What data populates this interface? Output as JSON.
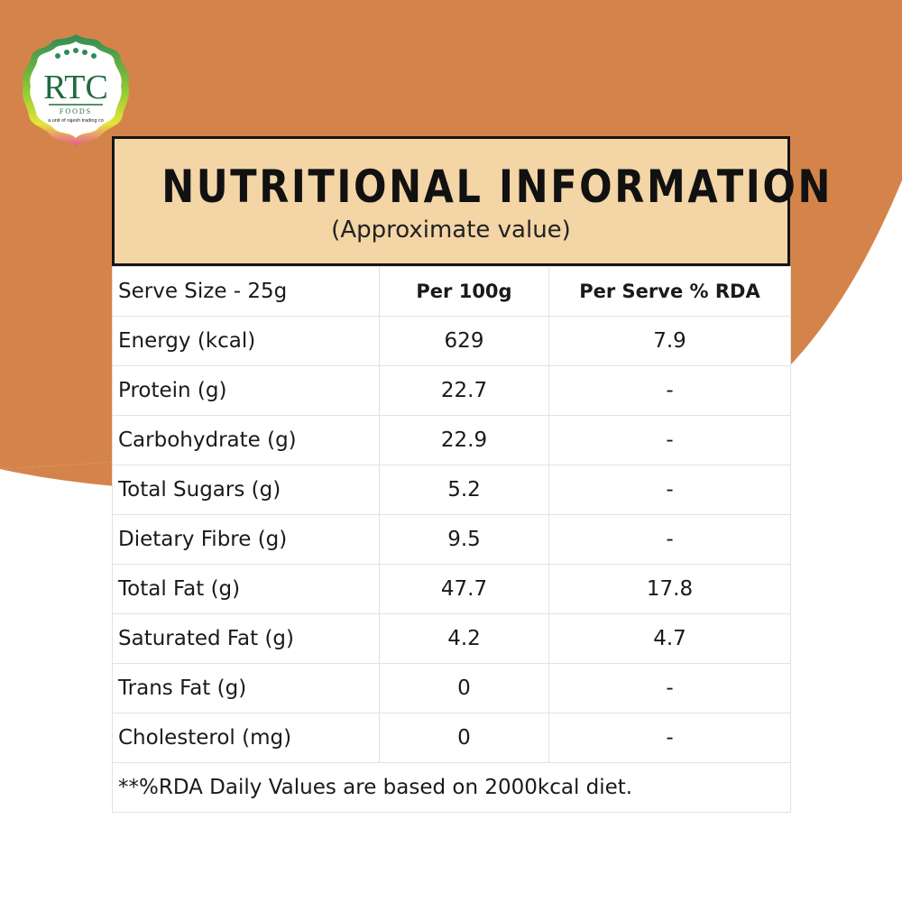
{
  "brand": {
    "name": "RTC",
    "sub": "FOODS",
    "tagline": "a unit of rajesh trading co"
  },
  "colors": {
    "background_shape": "#d4844a",
    "header_fill": "#f3d5a6",
    "header_border": "#141414",
    "logo_green": "#2e8b57",
    "logo_yellow": "#e6e636",
    "logo_pink": "#e8559a"
  },
  "header": {
    "title": "NUTRITIONAL INFORMATION",
    "subtitle": "(Approximate value)"
  },
  "table": {
    "columns": [
      "Serve Size - 25g",
      "Per 100g",
      "Per Serve % RDA"
    ],
    "rows": [
      [
        "Energy (kcal)",
        "629",
        "7.9"
      ],
      [
        "Protein (g)",
        "22.7",
        "-"
      ],
      [
        "Carbohydrate (g)",
        "22.9",
        "-"
      ],
      [
        "Total Sugars (g)",
        "5.2",
        "-"
      ],
      [
        "Dietary Fibre (g)",
        "9.5",
        "-"
      ],
      [
        "Total Fat (g)",
        "47.7",
        "17.8"
      ],
      [
        "Saturated Fat (g)",
        "4.2",
        "4.7"
      ],
      [
        "Trans Fat (g)",
        "0",
        "-"
      ],
      [
        "Cholesterol (mg)",
        "0",
        "-"
      ]
    ],
    "footnote": "**%RDA Daily Values are based on 2000kcal diet."
  }
}
